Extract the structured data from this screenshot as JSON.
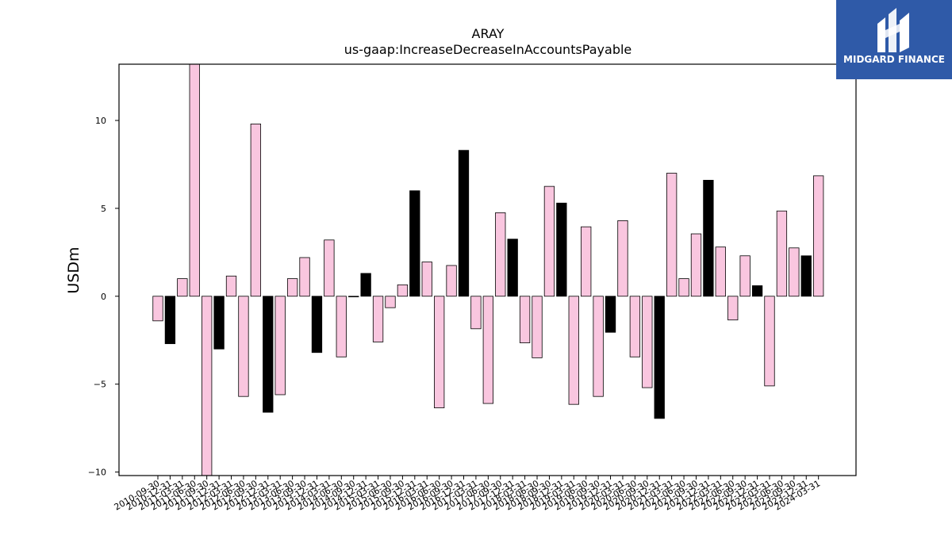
{
  "logo": {
    "text": "MIDGARD FINANCE",
    "icon": "midgard-m-logo-icon"
  },
  "chart_data": {
    "type": "bar",
    "title": "ARAY",
    "subtitle": "us-gaap:IncreaseDecreaseInAccountsPayable",
    "xlabel": "",
    "ylabel": "USDm",
    "ylim": [
      -10.2,
      13.2
    ],
    "yticks": [
      -10,
      -5,
      0,
      5,
      10
    ],
    "colors": {
      "normal": "#f9c6df",
      "highlight": "#000000",
      "edge": "#000000"
    },
    "categories": [
      "2010-09-30",
      "2010-12-31",
      "2011-03-31",
      "2011-06-30",
      "2011-09-30",
      "2011-12-31",
      "2012-03-31",
      "2012-06-30",
      "2012-09-30",
      "2012-12-31",
      "2013-03-31",
      "2013-06-30",
      "2013-09-30",
      "2013-12-31",
      "2014-03-31",
      "2014-06-30",
      "2014-09-30",
      "2014-12-31",
      "2015-03-31",
      "2015-06-30",
      "2015-09-30",
      "2015-12-31",
      "2016-03-31",
      "2016-06-30",
      "2016-09-30",
      "2016-12-31",
      "2017-03-31",
      "2017-06-30",
      "2017-09-30",
      "2017-12-31",
      "2018-03-31",
      "2018-06-30",
      "2018-09-30",
      "2018-12-31",
      "2019-03-31",
      "2019-06-30",
      "2019-09-30",
      "2019-12-31",
      "2020-03-31",
      "2020-06-30",
      "2020-09-30",
      "2020-12-31",
      "2021-03-31",
      "2021-06-30",
      "2021-09-30",
      "2021-12-31",
      "2022-03-31",
      "2022-06-30",
      "2022-09-30",
      "2022-12-31",
      "2023-03-31",
      "2023-06-30",
      "2023-09-30",
      "2023-12-31",
      "2024-03-31"
    ],
    "values": [
      -1.4,
      -2.7,
      1.0,
      13.2,
      -10.2,
      -3.0,
      1.15,
      -5.7,
      9.8,
      -6.6,
      -5.6,
      1.0,
      2.2,
      -3.2,
      3.2,
      -3.45,
      0.0,
      1.3,
      -2.6,
      -0.65,
      0.65,
      6.0,
      1.95,
      -6.35,
      1.75,
      8.3,
      -1.85,
      -6.1,
      4.75,
      3.25,
      -2.65,
      -3.5,
      6.25,
      5.3,
      -6.15,
      3.95,
      -5.7,
      -2.05,
      4.3,
      -3.45,
      -5.2,
      -6.95,
      7.0,
      1.0,
      3.55,
      6.6,
      2.8,
      -1.35,
      2.3,
      0.6,
      -5.1,
      4.85,
      2.75,
      2.3,
      6.85
    ],
    "highlight": [
      false,
      true,
      false,
      false,
      false,
      true,
      false,
      false,
      false,
      true,
      false,
      false,
      false,
      true,
      false,
      false,
      false,
      true,
      false,
      false,
      false,
      true,
      false,
      false,
      false,
      true,
      false,
      false,
      false,
      true,
      false,
      false,
      false,
      true,
      false,
      false,
      false,
      true,
      false,
      false,
      false,
      true,
      false,
      false,
      false,
      true,
      false,
      false,
      false,
      true,
      false,
      false,
      false,
      true,
      false
    ],
    "grid": false,
    "legend": "none"
  }
}
